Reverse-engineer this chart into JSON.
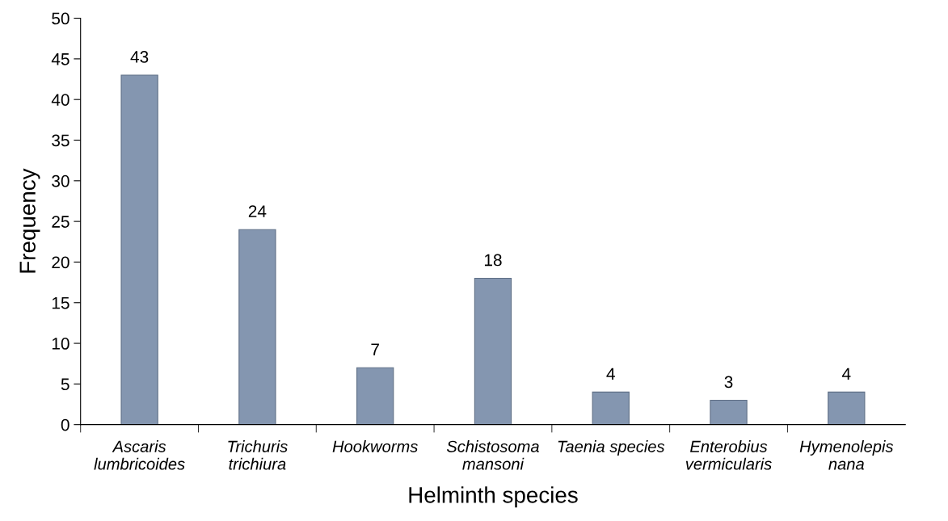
{
  "chart_data": {
    "type": "bar",
    "xlabel": "Helminth species",
    "ylabel": "Frequency",
    "categories": [
      "Ascaris\nlumbricoides",
      "Trichuris\ntrichiura",
      "Hookworms",
      "Schistosoma\nmansoni",
      "Taenia species",
      "Enterobius\nvermicularis",
      "Hymenolepis\nnana"
    ],
    "values": [
      43,
      24,
      7,
      18,
      4,
      3,
      4
    ],
    "color": "#8496b0",
    "ylim": [
      0,
      50
    ],
    "yticks": [
      0,
      5,
      10,
      15,
      20,
      25,
      30,
      35,
      40,
      45,
      50
    ],
    "grid": false,
    "data_labels": true
  }
}
